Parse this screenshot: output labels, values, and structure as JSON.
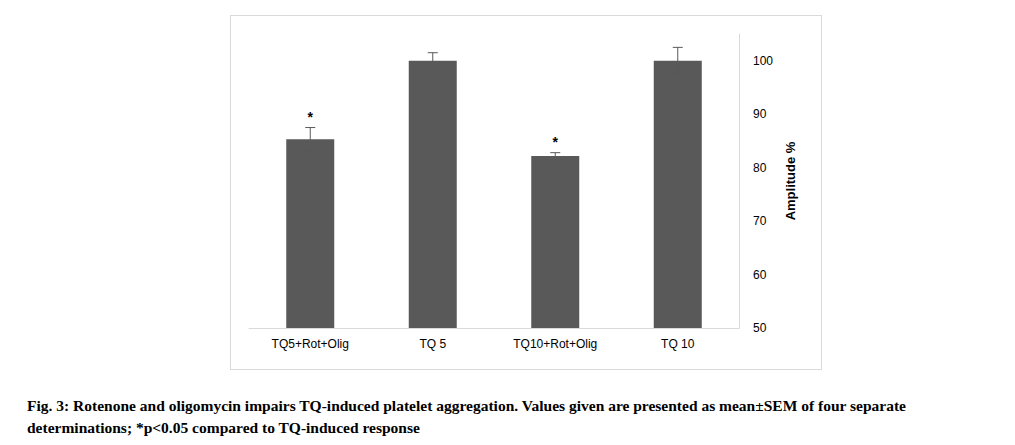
{
  "chart_data": {
    "type": "bar",
    "categories": [
      "TQ5+Rot+Olig",
      "TQ 5",
      "TQ10+Rot+Olig",
      "TQ 10"
    ],
    "values": [
      85.3,
      100,
      82.2,
      100
    ],
    "errors": [
      2.2,
      1.5,
      0.6,
      2.5
    ],
    "annotations": [
      {
        "category": "TQ5+Rot+Olig",
        "text": "*"
      },
      {
        "category": "TQ10+Rot+Olig",
        "text": "*"
      }
    ],
    "color": "#595959",
    "y_label": "Amplitude %",
    "ylim": [
      50,
      105
    ],
    "yticks": [
      50,
      60,
      70,
      80,
      90,
      100
    ],
    "grid": false,
    "caption": "Fig. 3: Rotenone and oligomycin impairs TQ-induced platelet aggregation. Values given are presented as mean±SEM of four separate determinations; *p<0.05 compared to TQ-induced response"
  }
}
